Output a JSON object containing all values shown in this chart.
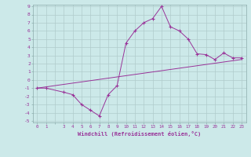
{
  "xlabel": "Windchill (Refroidissement éolien,°C)",
  "bg_color": "#cce9e9",
  "grid_color": "#b0cccc",
  "line_color": "#993399",
  "ylim": [
    -5,
    9
  ],
  "xlim": [
    -0.5,
    23.5
  ],
  "yticks": [
    -5,
    -4,
    -3,
    -2,
    -1,
    0,
    1,
    2,
    3,
    4,
    5,
    6,
    7,
    8,
    9
  ],
  "xticks": [
    0,
    1,
    3,
    4,
    5,
    6,
    7,
    8,
    9,
    10,
    11,
    12,
    13,
    14,
    15,
    16,
    17,
    18,
    19,
    20,
    21,
    22,
    23
  ],
  "windchill_x": [
    0,
    1,
    3,
    4,
    5,
    6,
    7,
    8,
    9,
    10,
    11,
    12,
    13,
    14,
    15,
    16,
    17,
    18,
    19,
    20,
    21,
    22,
    23
  ],
  "windchill_y": [
    -1,
    -1,
    -1.5,
    -1.8,
    -3.0,
    -3.7,
    -4.4,
    -1.8,
    -0.7,
    4.5,
    6.0,
    7.0,
    7.5,
    9.0,
    6.5,
    6.0,
    5.0,
    3.2,
    3.1,
    2.5,
    3.3,
    2.7,
    2.7
  ],
  "line2_x": [
    0,
    23
  ],
  "line2_y": [
    -1.0,
    2.5
  ]
}
